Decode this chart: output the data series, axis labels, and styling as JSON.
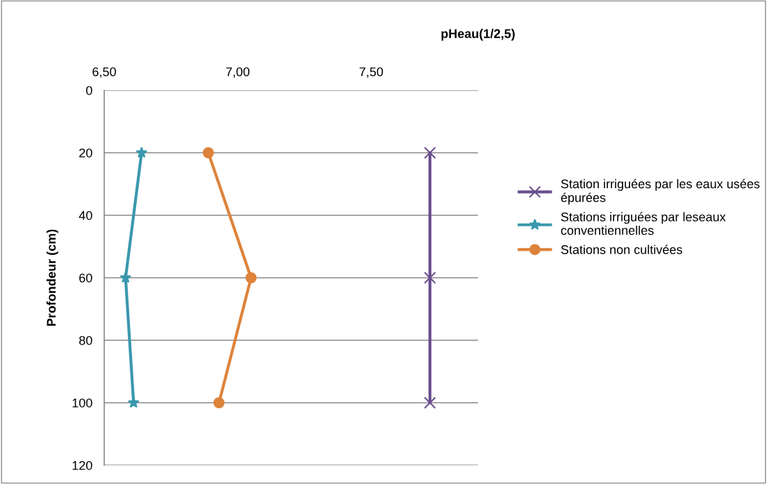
{
  "chart_data": {
    "type": "line",
    "xlabel": "pHeau(1/2,5)",
    "ylabel": "Profondeur (cm)",
    "xlim": [
      6.5,
      7.9
    ],
    "xticks": [
      {
        "value": 6.5,
        "label": "6,50"
      },
      {
        "value": 7.0,
        "label": "7,00"
      },
      {
        "value": 7.5,
        "label": "7,50"
      }
    ],
    "ylim": [
      120,
      0
    ],
    "yticks": [
      0,
      20,
      40,
      60,
      80,
      100,
      120
    ],
    "grid": "y",
    "legend": "right",
    "line_style": "solid",
    "series": [
      {
        "name": "Station irriguées par les eaux usées épurées",
        "color": "#6a4f8f",
        "marker": "cross",
        "x": [
          7.72,
          7.72,
          7.72
        ],
        "values": [
          20,
          60,
          100
        ]
      },
      {
        "name": "Stations irriguées par leseaux conventiennelles",
        "color": "#3a98ae",
        "marker": "star",
        "x": [
          6.64,
          6.58,
          6.61
        ],
        "values": [
          20,
          60,
          100
        ]
      },
      {
        "name": "Stations non cultivées",
        "color": "#dd833b",
        "marker": "circle",
        "x": [
          6.89,
          7.05,
          6.93
        ],
        "values": [
          20,
          60,
          100
        ]
      }
    ]
  }
}
